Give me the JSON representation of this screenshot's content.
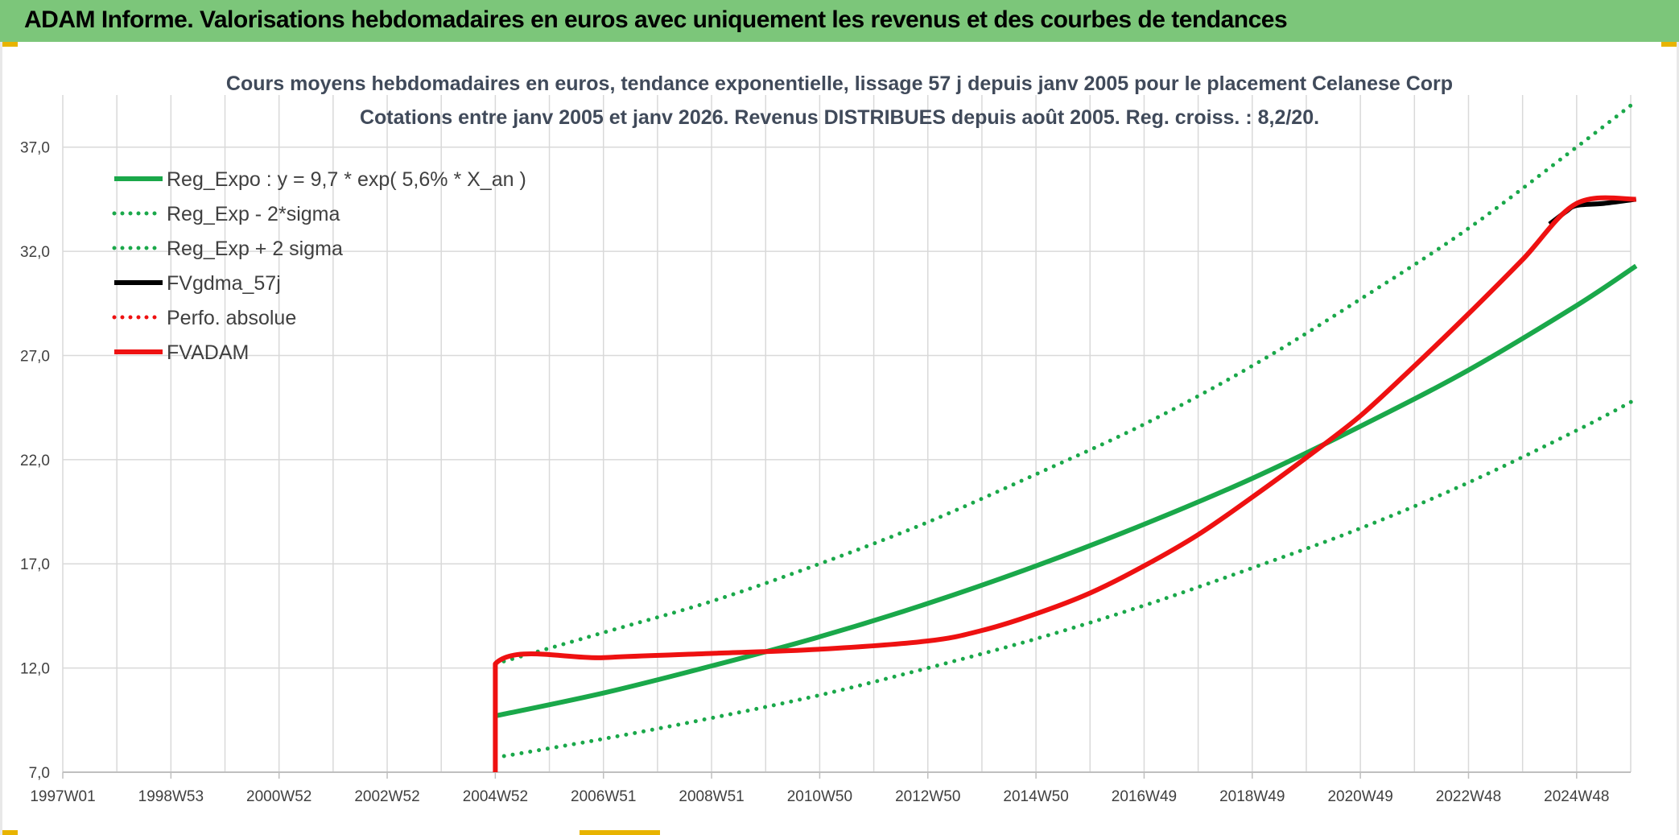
{
  "header": {
    "title": "ADAM Informe. Valorisations hebdomadaires en euros avec uniquement les revenus et des courbes de tendances"
  },
  "colors": {
    "header_bg": "#7cc67a",
    "reg_green": "#1aa84a",
    "red": "#ee1111",
    "black": "#000000",
    "grid": "#d9d9d9"
  },
  "chart_data": {
    "type": "line",
    "title": "Cours moyens hebdomadaires en euros, tendance exponentielle, lissage 57 j depuis janv 2005 pour le placement Celanese Corp",
    "subtitle": "Cotations entre janv 2005 et janv 2026. Revenus DISTRIBUES depuis août 2005. Reg. croiss. : 8,2/20.",
    "xlabel": "",
    "ylabel": "",
    "ylim": [
      7.0,
      39.5
    ],
    "xlim": [
      1997.0,
      2026.0
    ],
    "y_ticks": [
      "7,0",
      "12,0",
      "17,0",
      "22,0",
      "27,0",
      "32,0",
      "37,0"
    ],
    "y_tick_values": [
      7,
      12,
      17,
      22,
      27,
      32,
      37
    ],
    "x_ticks": [
      "1997W01",
      "1998W53",
      "2000W52",
      "2002W52",
      "2004W52",
      "2006W51",
      "2008W51",
      "2010W50",
      "2012W50",
      "2014W50",
      "2016W49",
      "2018W49",
      "2020W49",
      "2022W48",
      "2024W48"
    ],
    "x_tick_values": [
      1997.0,
      1999.0,
      2001.0,
      2003.0,
      2005.0,
      2007.0,
      2009.0,
      2011.0,
      2013.0,
      2015.0,
      2017.0,
      2019.0,
      2021.0,
      2023.0,
      2025.0
    ],
    "grid": true,
    "legend_position": "top-left",
    "series": [
      {
        "name": "Reg_Expo : y = 9,7 * exp( 5,6% *  X_an )",
        "style": "solid",
        "color": "#1aa84a",
        "x": [
          2005,
          2007,
          2009,
          2011,
          2013,
          2015,
          2017,
          2019,
          2021,
          2023,
          2025,
          2026.1
        ],
        "y": [
          9.7,
          10.8,
          12.1,
          13.5,
          15.1,
          16.9,
          18.9,
          21.1,
          23.6,
          26.3,
          29.4,
          31.3
        ]
      },
      {
        "name": "Reg_Exp - 2*sigma",
        "style": "dotted",
        "color": "#1aa84a",
        "x": [
          2005,
          2007,
          2009,
          2011,
          2013,
          2015,
          2017,
          2019,
          2021,
          2023,
          2025,
          2026.1
        ],
        "y": [
          7.7,
          8.6,
          9.6,
          10.7,
          12.0,
          13.4,
          15.0,
          16.8,
          18.7,
          20.9,
          23.4,
          24.9
        ]
      },
      {
        "name": "Reg_Exp + 2 sigma",
        "style": "dotted",
        "color": "#1aa84a",
        "x": [
          2005,
          2007,
          2009,
          2011,
          2013,
          2015,
          2017,
          2019,
          2021,
          2023,
          2025,
          2026.1
        ],
        "y": [
          12.2,
          13.7,
          15.2,
          17.0,
          19.0,
          21.3,
          23.7,
          26.5,
          29.7,
          33.1,
          37.0,
          39.2
        ]
      },
      {
        "name": "FVgdma_57j",
        "style": "solid",
        "color": "#000000",
        "x": [
          2024.5,
          2024.8,
          2025.0,
          2025.5,
          2026.1
        ],
        "y": [
          33.3,
          33.9,
          34.2,
          34.3,
          34.5
        ]
      },
      {
        "name": "Perfo. absolue",
        "style": "dotted",
        "color": "#ee1111",
        "x": [],
        "y": []
      },
      {
        "name": "FVADAM",
        "style": "solid",
        "color": "#ee1111",
        "x": [
          2005,
          2005,
          2007,
          2009,
          2011,
          2013,
          2014,
          2015,
          2016,
          2017,
          2018,
          2019,
          2020,
          2021,
          2022,
          2023,
          2024,
          2025,
          2026.1
        ],
        "y": [
          7.0,
          12.2,
          12.5,
          12.7,
          12.9,
          13.3,
          13.8,
          14.6,
          15.6,
          16.9,
          18.4,
          20.2,
          22.1,
          24.1,
          26.5,
          29.0,
          31.6,
          34.3,
          34.5
        ]
      }
    ]
  }
}
